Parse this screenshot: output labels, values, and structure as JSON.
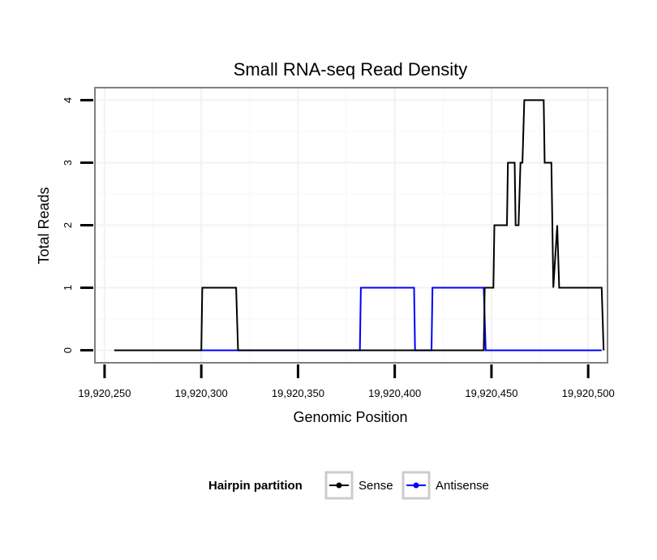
{
  "chart_data": {
    "type": "line",
    "title": "Small RNA-seq Read Density",
    "xlabel": "Genomic Position",
    "ylabel": "Total Reads",
    "xlim": [
      19920245,
      19920510
    ],
    "ylim": [
      -0.2,
      4.2
    ],
    "x_ticks": [
      19920250,
      19920300,
      19920350,
      19920400,
      19920450,
      19920500
    ],
    "x_tick_labels": [
      "19,920,250",
      "19,920,300",
      "19,920,350",
      "19,920,400",
      "19,920,450",
      "19,920,500"
    ],
    "y_ticks": [
      0,
      1,
      2,
      3,
      4
    ],
    "y_tick_labels": [
      "0",
      "1",
      "2",
      "3",
      "4"
    ],
    "grid": true,
    "legend": {
      "title": "Hairpin partition",
      "position": "bottom",
      "entries": [
        "Sense",
        "Antisense"
      ]
    },
    "series": [
      {
        "name": "Sense",
        "color": "#000000",
        "x": [
          19920255,
          19920300,
          19920300.5,
          19920318,
          19920319,
          19920446,
          19920446.5,
          19920451,
          19920451.5,
          19920458,
          19920458.5,
          19920462,
          19920462.5,
          19920464,
          19920465,
          19920466,
          19920467,
          19920477,
          19920477.5,
          19920481,
          19920482,
          19920484,
          19920485,
          19920486,
          19920507,
          19920508
        ],
        "y": [
          0,
          0,
          1,
          1,
          0,
          0,
          1,
          1,
          2,
          2,
          3,
          3,
          2,
          2,
          3,
          3,
          4,
          4,
          3,
          3,
          1,
          2,
          1,
          1,
          1,
          0
        ]
      },
      {
        "name": "Antisense",
        "color": "#0000ff",
        "x": [
          19920300,
          19920318,
          19920382,
          19920382.5,
          19920410,
          19920410.5,
          19920419,
          19920419.5,
          19920446,
          19920447,
          19920507
        ],
        "y": [
          0,
          0,
          0,
          1,
          1,
          0,
          0,
          1,
          1,
          0,
          0
        ]
      }
    ]
  }
}
